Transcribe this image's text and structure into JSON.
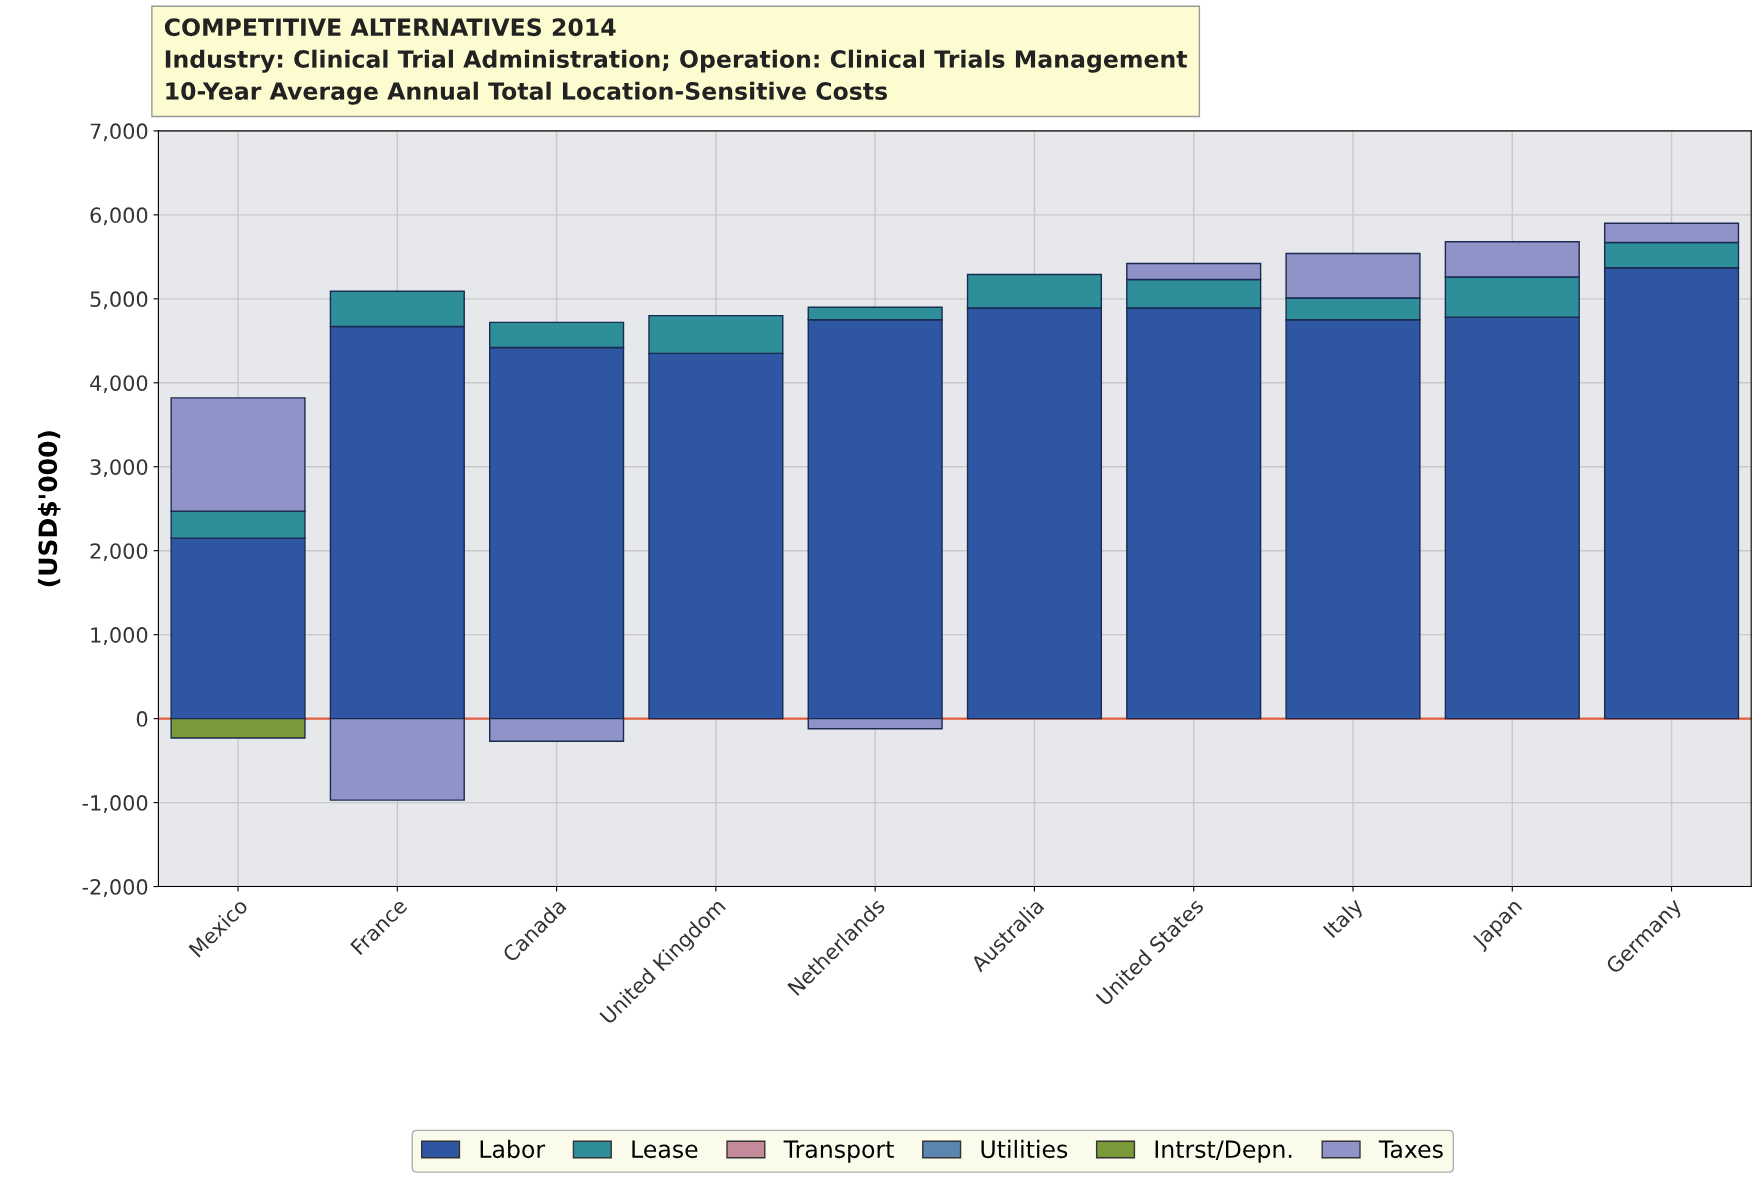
{
  "chart_data": {
    "type": "bar",
    "stacked": true,
    "title": "COMPETITIVE ALTERNATIVES 2014",
    "subtitle": "Industry: Clinical Trial Administration; Operation: Clinical Trials Management\n10-Year Average Annual Total Location-Sensitive Costs",
    "ylabel": "(USD$'000)",
    "categories": [
      "Mexico",
      "France",
      "Canada",
      "United Kingdom",
      "Netherlands",
      "Australia",
      "United States",
      "Italy",
      "Japan",
      "Germany"
    ],
    "series": [
      {
        "name": "Labor",
        "color": "#2f56a3",
        "values": [
          2150,
          4670,
          4420,
          4350,
          4750,
          4890,
          4890,
          4750,
          4780,
          5370
        ]
      },
      {
        "name": "Lease",
        "color": "#2e8f9b",
        "values": [
          320,
          420,
          300,
          450,
          150,
          400,
          340,
          260,
          480,
          300
        ]
      },
      {
        "name": "Transport",
        "color": "#c48a9a",
        "values": [
          0,
          0,
          0,
          0,
          0,
          0,
          0,
          0,
          0,
          0
        ]
      },
      {
        "name": "Utilities",
        "color": "#5b86b0",
        "values": [
          0,
          0,
          0,
          0,
          0,
          0,
          0,
          0,
          0,
          0
        ]
      },
      {
        "name": "Intrst/Depn.",
        "color": "#7a9a3a",
        "values": [
          -230,
          0,
          0,
          0,
          0,
          0,
          0,
          0,
          0,
          0
        ]
      },
      {
        "name": "Taxes",
        "color": "#8f93c8",
        "values": [
          1350,
          -970,
          -270,
          0,
          -120,
          0,
          190,
          530,
          420,
          230
        ]
      }
    ],
    "ylim": [
      -2000,
      7000
    ],
    "yticks": [
      {
        "value": -2000,
        "label": "-2,000"
      },
      {
        "value": -1000,
        "label": "-1,000"
      },
      0,
      {
        "value": 1000,
        "label": "1,000"
      },
      {
        "value": 2000,
        "label": "2,000"
      },
      {
        "value": 3000,
        "label": "3,000"
      },
      {
        "value": 4000,
        "label": "4,000"
      },
      {
        "value": 5000,
        "label": "5,000"
      },
      {
        "value": 6000,
        "label": "6,000"
      },
      {
        "value": 7000,
        "label": "7,000"
      }
    ],
    "ref_lines": [
      {
        "axis": "y",
        "value": 0,
        "label": null,
        "color": "#e06040"
      }
    ],
    "grid": true,
    "legend": "bottom"
  }
}
